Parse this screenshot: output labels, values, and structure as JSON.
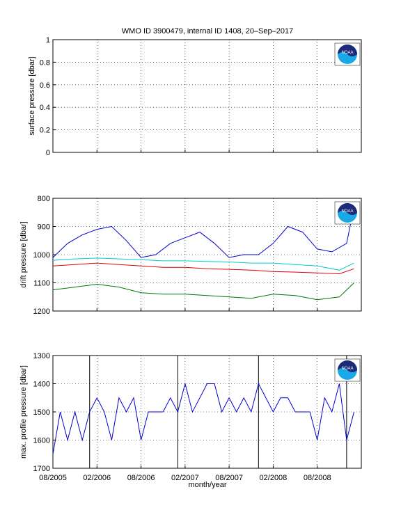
{
  "title": "WMO ID 3900479, internal ID 1408, 20–Sep–2017",
  "xlabel": "month/year",
  "logo": {
    "text": "NOAA",
    "colors": {
      "navy": "#1d2a78",
      "blue": "#19a9e6"
    }
  },
  "chart_data": [
    {
      "type": "line",
      "ylabel": "surface pressure [dbar]",
      "ylim": [
        0,
        1
      ],
      "yticks": [
        "0",
        "0.2",
        "0.4",
        "0.6",
        "0.8",
        "1"
      ],
      "x_ticks": [
        "08/2005",
        "02/2006",
        "08/2006",
        "02/2007",
        "08/2007",
        "02/2008",
        "08/2008"
      ],
      "grid": true,
      "series": []
    },
    {
      "type": "line",
      "ylabel": "drift pressure [dbar]",
      "ylim": [
        800,
        1200
      ],
      "y_reversed": true,
      "yticks": [
        "800",
        "900",
        "1000",
        "1100",
        "1200"
      ],
      "x_ticks": [
        "08/2005",
        "02/2006",
        "08/2006",
        "02/2007",
        "08/2007",
        "02/2008",
        "08/2008"
      ],
      "grid": true,
      "series": [
        {
          "color": "#0000cc",
          "x": [
            "2005-08",
            "2005-10",
            "2005-12",
            "2006-02",
            "2006-04",
            "2006-06",
            "2006-08",
            "2006-10",
            "2006-12",
            "2007-02",
            "2007-04",
            "2007-06",
            "2007-08",
            "2007-10",
            "2007-12",
            "2008-02",
            "2008-04",
            "2008-06",
            "2008-08",
            "2008-10",
            "2008-12",
            "2009-01"
          ],
          "values": [
            1010,
            960,
            930,
            910,
            900,
            950,
            1010,
            1000,
            960,
            940,
            920,
            960,
            1010,
            1000,
            1000,
            960,
            900,
            920,
            980,
            990,
            960,
            830
          ]
        },
        {
          "color": "#00cccc",
          "x": [
            "2005-08",
            "2005-11",
            "2006-02",
            "2006-05",
            "2006-08",
            "2006-11",
            "2007-02",
            "2007-05",
            "2007-08",
            "2007-11",
            "2008-02",
            "2008-05",
            "2008-08",
            "2008-11",
            "2009-01"
          ],
          "values": [
            1020,
            1015,
            1012,
            1015,
            1018,
            1022,
            1022,
            1024,
            1026,
            1030,
            1030,
            1035,
            1040,
            1055,
            1030
          ]
        },
        {
          "color": "#dd0000",
          "x": [
            "2005-08",
            "2005-11",
            "2006-02",
            "2006-05",
            "2006-08",
            "2006-11",
            "2007-02",
            "2007-05",
            "2007-08",
            "2007-11",
            "2008-02",
            "2008-05",
            "2008-08",
            "2008-11",
            "2009-01"
          ],
          "values": [
            1040,
            1035,
            1030,
            1035,
            1040,
            1045,
            1045,
            1050,
            1052,
            1055,
            1060,
            1062,
            1065,
            1068,
            1050
          ]
        },
        {
          "color": "#007700",
          "x": [
            "2005-08",
            "2005-11",
            "2006-02",
            "2006-05",
            "2006-08",
            "2006-11",
            "2007-02",
            "2007-05",
            "2007-08",
            "2007-11",
            "2008-02",
            "2008-05",
            "2008-08",
            "2008-11",
            "2009-01"
          ],
          "values": [
            1125,
            1115,
            1105,
            1115,
            1135,
            1140,
            1140,
            1145,
            1150,
            1155,
            1140,
            1145,
            1160,
            1150,
            1100
          ]
        }
      ]
    },
    {
      "type": "line",
      "ylabel": "max. profile pressure [dbar]",
      "ylim": [
        1300,
        1700
      ],
      "y_reversed": true,
      "yticks": [
        "1300",
        "1400",
        "1500",
        "1600",
        "1700"
      ],
      "x_ticks": [
        "08/2005",
        "02/2006",
        "08/2006",
        "02/2007",
        "08/2007",
        "02/2008",
        "08/2008"
      ],
      "grid": true,
      "vlines": [
        "2006-01",
        "2007-01",
        "2007-12",
        "2008-12"
      ],
      "series": [
        {
          "color": "#0000cc",
          "x": [
            "2005-08",
            "2005-09",
            "2005-10",
            "2005-11",
            "2005-12",
            "2006-01",
            "2006-02",
            "2006-03",
            "2006-04",
            "2006-05",
            "2006-06",
            "2006-07",
            "2006-08",
            "2006-09",
            "2006-10",
            "2006-11",
            "2006-12",
            "2007-01",
            "2007-02",
            "2007-03",
            "2007-04",
            "2007-05",
            "2007-06",
            "2007-07",
            "2007-08",
            "2007-09",
            "2007-10",
            "2007-11",
            "2007-12",
            "2008-01",
            "2008-02",
            "2008-03",
            "2008-04",
            "2008-05",
            "2008-06",
            "2008-07",
            "2008-08",
            "2008-09",
            "2008-10",
            "2008-11",
            "2008-12",
            "2009-01"
          ],
          "values": [
            1650,
            1500,
            1600,
            1500,
            1600,
            1500,
            1450,
            1500,
            1600,
            1450,
            1500,
            1450,
            1600,
            1500,
            1500,
            1500,
            1450,
            1500,
            1400,
            1500,
            1450,
            1400,
            1400,
            1500,
            1450,
            1500,
            1450,
            1500,
            1400,
            1450,
            1500,
            1450,
            1450,
            1500,
            1500,
            1500,
            1600,
            1450,
            1500,
            1400,
            1600,
            1500
          ]
        }
      ]
    }
  ]
}
